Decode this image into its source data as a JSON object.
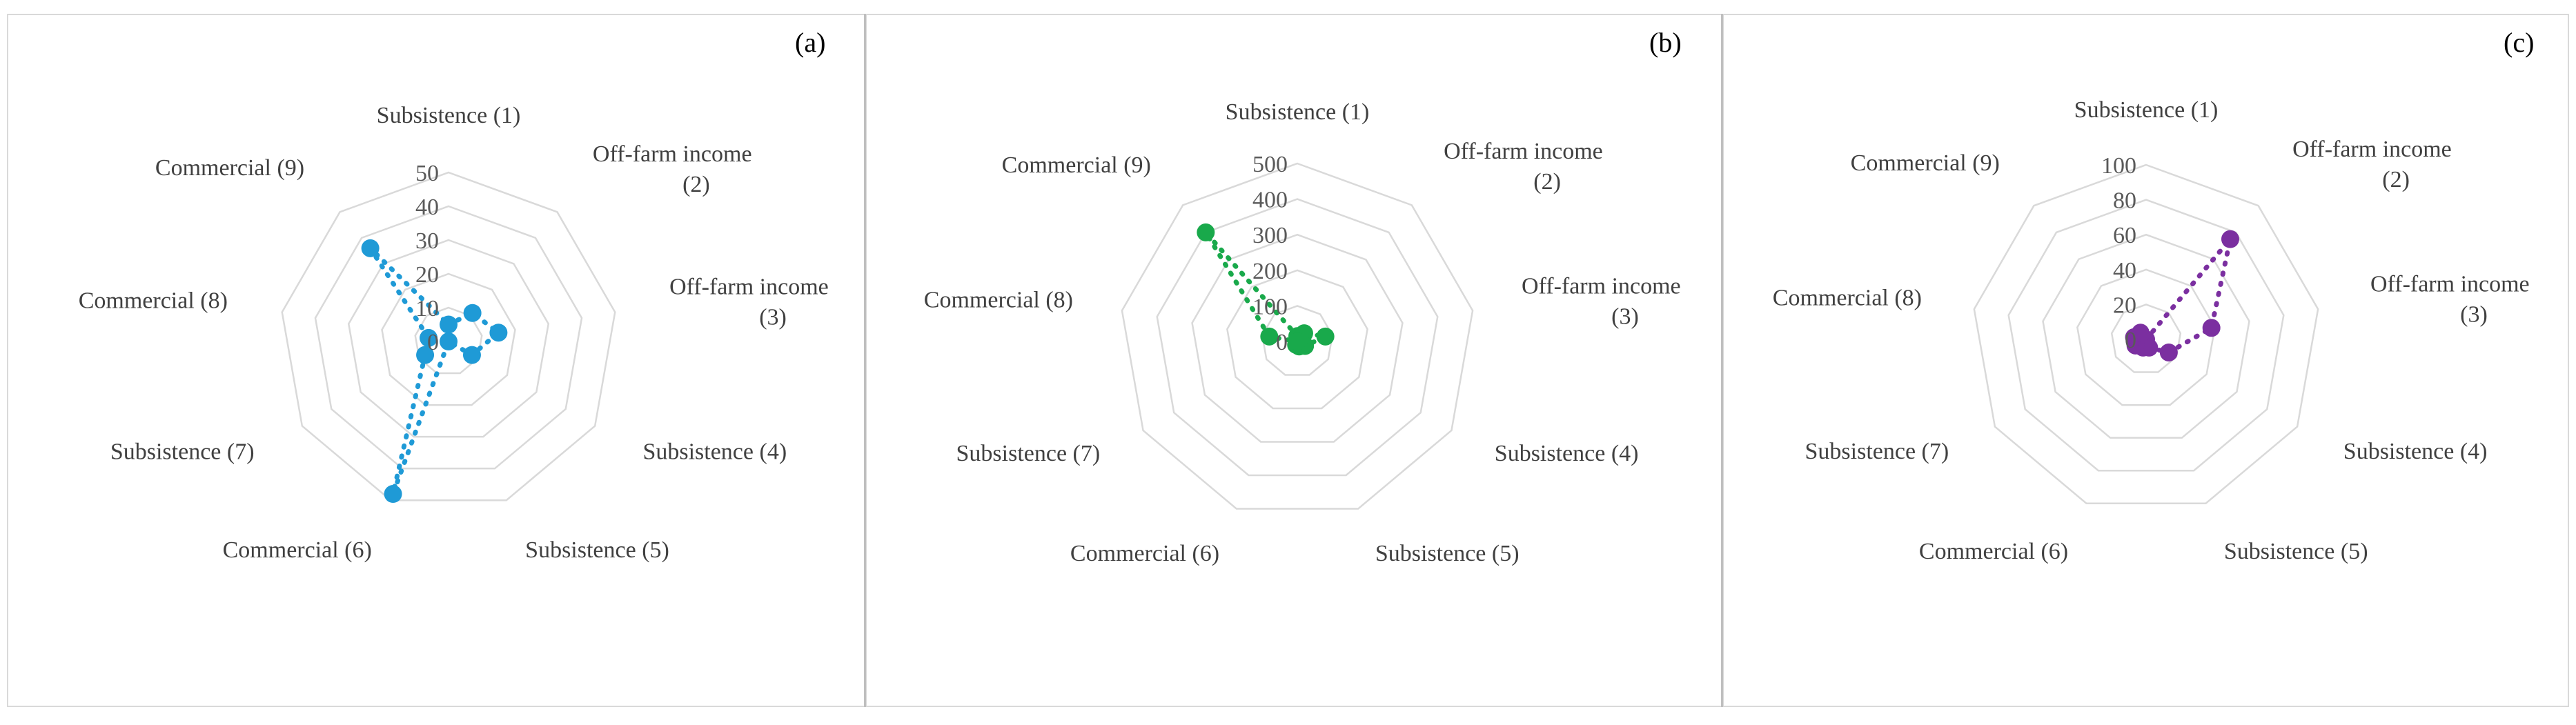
{
  "chart_data": [
    {
      "type": "radar",
      "panel_label": "(a)",
      "categories": [
        "Subsistence (1)",
        "Off-farm income (2)",
        "Off-farm income (3)",
        "Subsistence (4)",
        "Subsistence (5)",
        "Commercial (6)",
        "Subsistence (7)",
        "Commercial (8)",
        "Commercial (9)"
      ],
      "values": [
        5,
        11,
        15,
        8,
        0,
        48,
        8,
        6,
        36
      ],
      "rmax": 50,
      "ticks": [
        0,
        10,
        20,
        30,
        40,
        50
      ],
      "series_color": "#1f9ad6",
      "grid": true
    },
    {
      "type": "radar",
      "panel_label": "(b)",
      "categories": [
        "Subsistence (1)",
        "Off-farm income (2)",
        "Off-farm income (3)",
        "Subsistence (4)",
        "Subsistence (5)",
        "Commercial (6)",
        "Subsistence (7)",
        "Commercial (8)",
        "Commercial (9)"
      ],
      "values": [
        15,
        30,
        80,
        25,
        15,
        10,
        0,
        80,
        400
      ],
      "rmax": 500,
      "ticks": [
        0,
        100,
        200,
        300,
        400,
        500
      ],
      "series_color": "#19a94b",
      "grid": true
    },
    {
      "type": "radar",
      "panel_label": "(c)",
      "categories": [
        "Subsistence (1)",
        "Off-farm income (2)",
        "Off-farm income (3)",
        "Subsistence (4)",
        "Subsistence (5)",
        "Commercial (6)",
        "Subsistence (7)",
        "Commercial (8)",
        "Commercial (9)"
      ],
      "values": [
        0,
        75,
        38,
        15,
        5,
        5,
        7,
        7,
        5
      ],
      "rmax": 100,
      "ticks": [
        0,
        20,
        40,
        60,
        80,
        100
      ],
      "series_color": "#7b2fa0",
      "grid": true
    }
  ]
}
